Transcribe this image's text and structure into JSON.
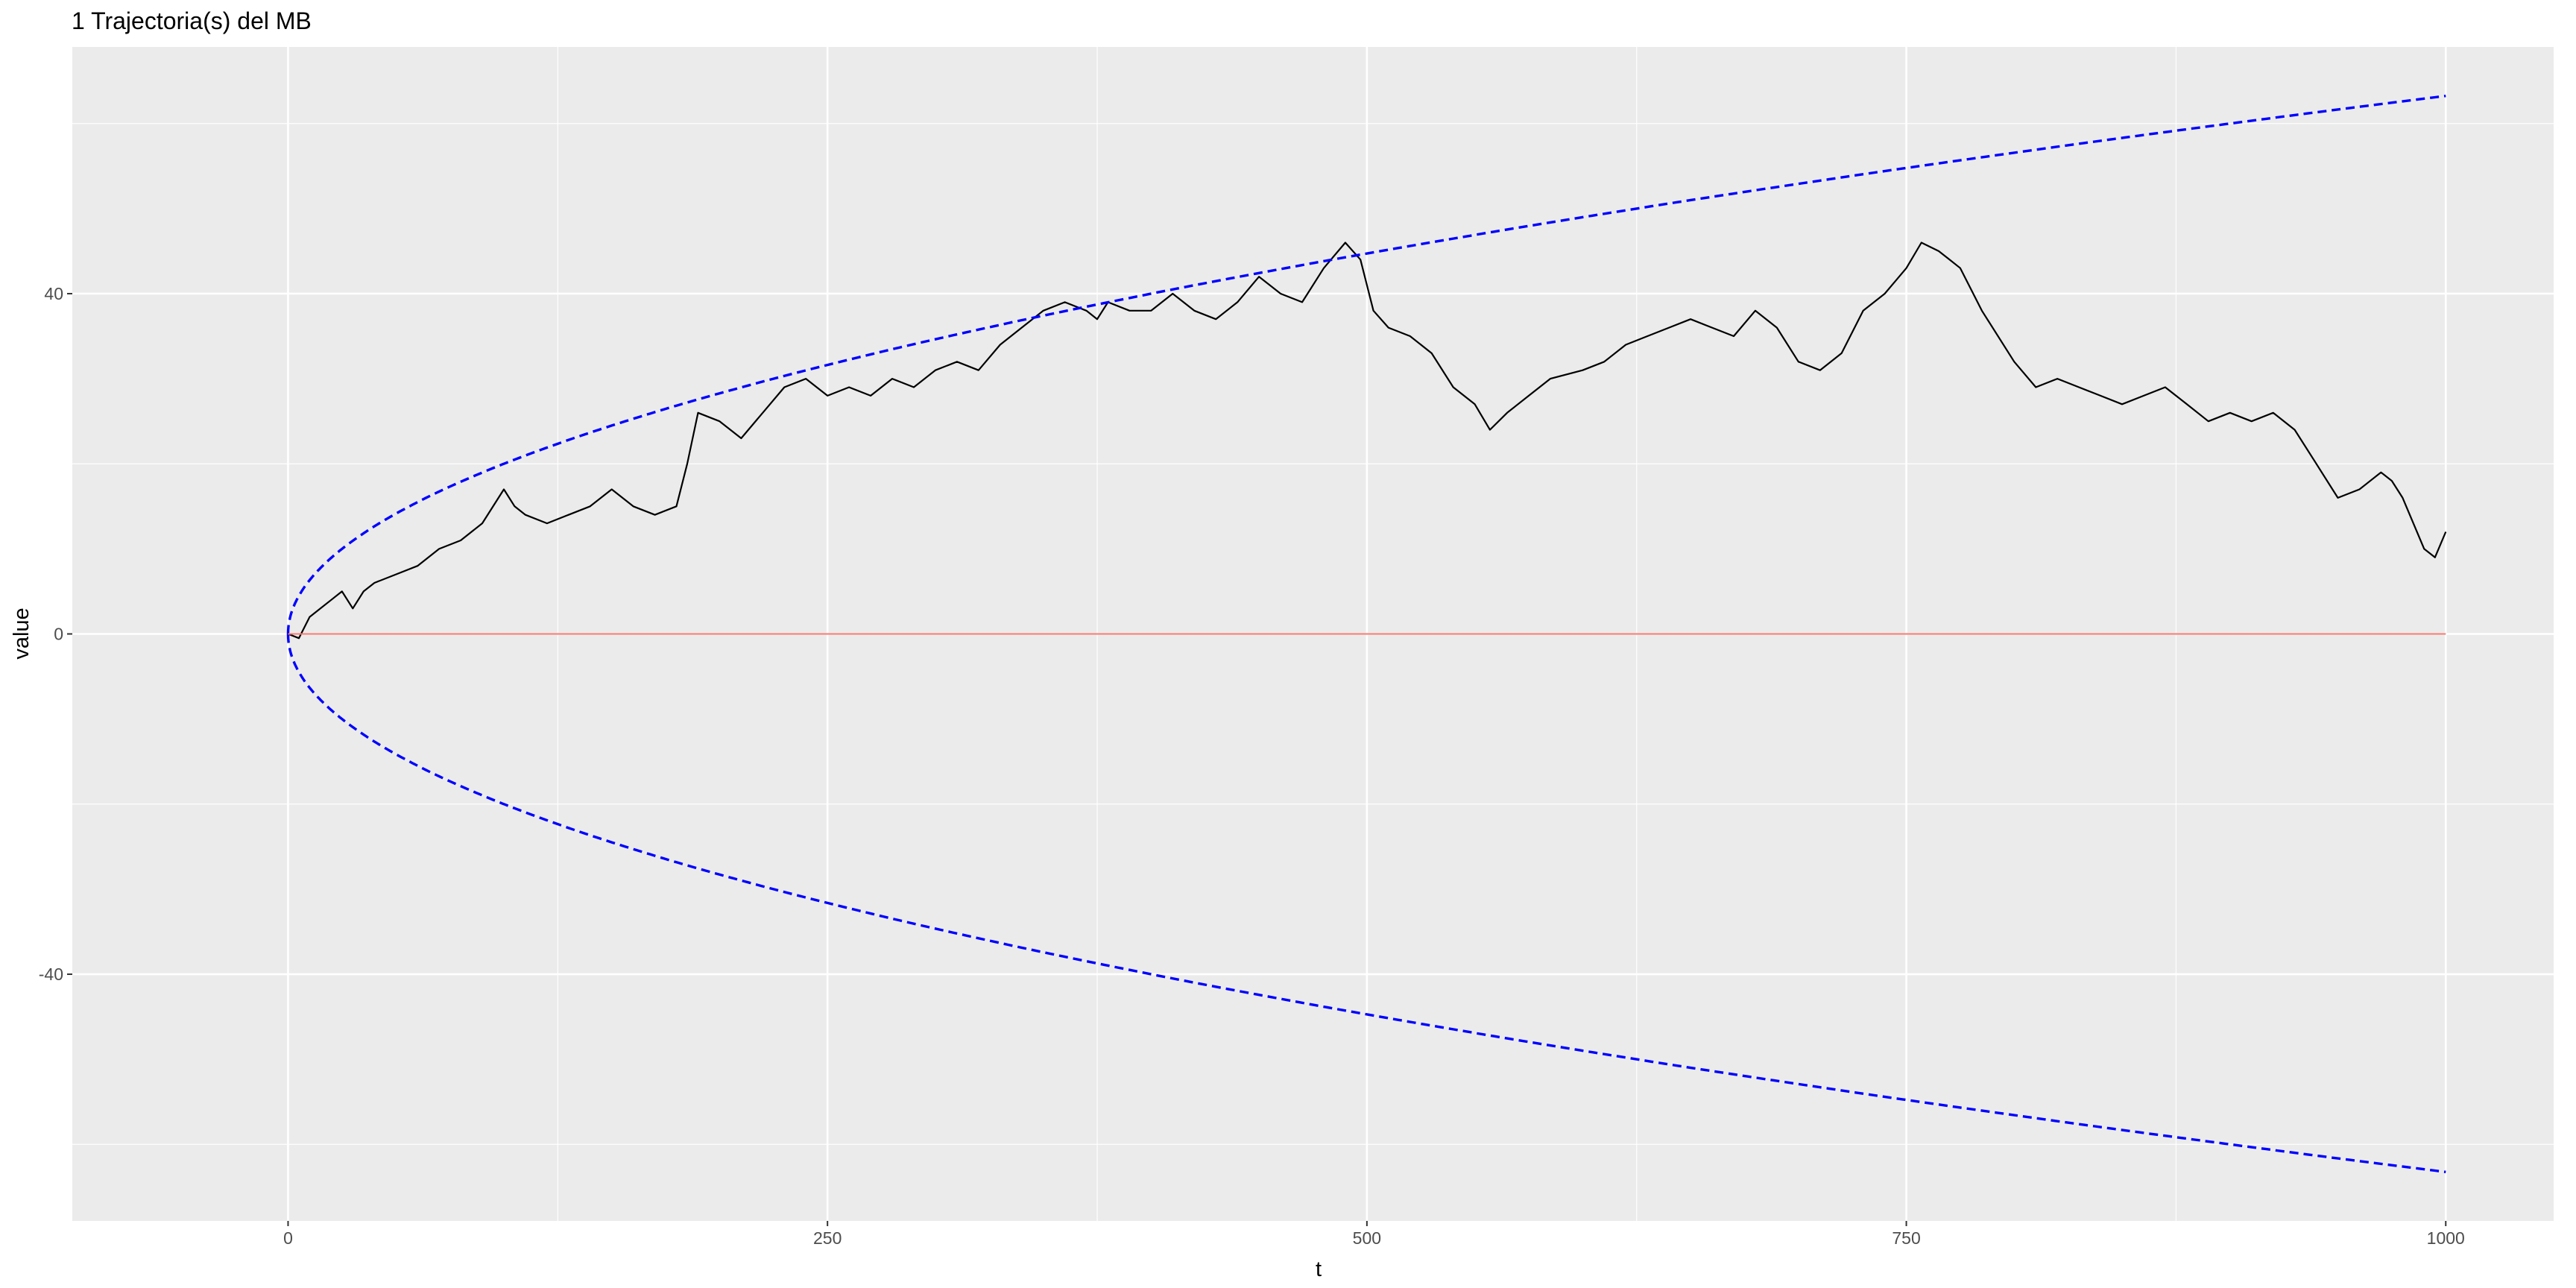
{
  "chart_data": {
    "type": "line",
    "title": "1 Trajectoria(s) del MB",
    "xlabel": "t",
    "ylabel": "value",
    "xlim": [
      -100,
      1050
    ],
    "ylim": [
      -69,
      69
    ],
    "x_ticks": [
      0,
      250,
      500,
      750,
      1000
    ],
    "x_tick_labels": [
      "0",
      "250",
      "500",
      "750",
      "1000"
    ],
    "y_ticks": [
      -40,
      0,
      40
    ],
    "y_tick_labels": [
      "-40",
      "0",
      "40"
    ],
    "grid": true,
    "legend": "none",
    "series": [
      {
        "kind": "path",
        "color": "#000000",
        "style": "solid",
        "points": [
          [
            0,
            0
          ],
          [
            5,
            -0.5
          ],
          [
            10,
            2
          ],
          [
            15,
            3
          ],
          [
            20,
            4
          ],
          [
            25,
            5
          ],
          [
            30,
            3
          ],
          [
            35,
            5
          ],
          [
            40,
            6
          ],
          [
            50,
            7
          ],
          [
            60,
            8
          ],
          [
            70,
            10
          ],
          [
            80,
            11
          ],
          [
            90,
            13
          ],
          [
            100,
            17
          ],
          [
            105,
            15
          ],
          [
            110,
            14
          ],
          [
            120,
            13
          ],
          [
            130,
            14
          ],
          [
            140,
            15
          ],
          [
            150,
            17
          ],
          [
            160,
            15
          ],
          [
            170,
            14
          ],
          [
            180,
            15
          ],
          [
            185,
            20
          ],
          [
            190,
            26
          ],
          [
            200,
            25
          ],
          [
            210,
            23
          ],
          [
            220,
            26
          ],
          [
            230,
            29
          ],
          [
            240,
            30
          ],
          [
            250,
            28
          ],
          [
            260,
            29
          ],
          [
            270,
            28
          ],
          [
            280,
            30
          ],
          [
            290,
            29
          ],
          [
            300,
            31
          ],
          [
            310,
            32
          ],
          [
            320,
            31
          ],
          [
            330,
            34
          ],
          [
            340,
            36
          ],
          [
            350,
            38
          ],
          [
            360,
            39
          ],
          [
            370,
            38
          ],
          [
            375,
            37
          ],
          [
            380,
            39
          ],
          [
            390,
            38
          ],
          [
            400,
            38
          ],
          [
            410,
            40
          ],
          [
            420,
            38
          ],
          [
            430,
            37
          ],
          [
            440,
            39
          ],
          [
            450,
            42
          ],
          [
            460,
            40
          ],
          [
            470,
            39
          ],
          [
            480,
            43
          ],
          [
            490,
            46
          ],
          [
            497,
            44
          ],
          [
            503,
            38
          ],
          [
            510,
            36
          ],
          [
            520,
            35
          ],
          [
            530,
            33
          ],
          [
            540,
            29
          ],
          [
            550,
            27
          ],
          [
            557,
            24
          ],
          [
            565,
            26
          ],
          [
            575,
            28
          ],
          [
            585,
            30
          ],
          [
            600,
            31
          ],
          [
            610,
            32
          ],
          [
            620,
            34
          ],
          [
            630,
            35
          ],
          [
            640,
            36
          ],
          [
            650,
            37
          ],
          [
            660,
            36
          ],
          [
            670,
            35
          ],
          [
            680,
            38
          ],
          [
            690,
            36
          ],
          [
            700,
            32
          ],
          [
            710,
            31
          ],
          [
            720,
            33
          ],
          [
            730,
            38
          ],
          [
            740,
            40
          ],
          [
            750,
            43
          ],
          [
            757,
            46
          ],
          [
            765,
            45
          ],
          [
            770,
            44
          ],
          [
            775,
            43
          ],
          [
            785,
            38
          ],
          [
            800,
            32
          ],
          [
            810,
            29
          ],
          [
            820,
            30
          ],
          [
            830,
            29
          ],
          [
            840,
            28
          ],
          [
            850,
            27
          ],
          [
            860,
            28
          ],
          [
            870,
            29
          ],
          [
            880,
            27
          ],
          [
            890,
            25
          ],
          [
            900,
            26
          ],
          [
            910,
            25
          ],
          [
            920,
            26
          ],
          [
            930,
            24
          ],
          [
            940,
            20
          ],
          [
            950,
            16
          ],
          [
            960,
            17
          ],
          [
            970,
            19
          ],
          [
            975,
            18
          ],
          [
            980,
            16
          ],
          [
            985,
            13
          ],
          [
            990,
            10
          ],
          [
            995,
            9
          ],
          [
            1000,
            12
          ]
        ]
      },
      {
        "kind": "sqrt_band",
        "color": "#0000ff",
        "style": "dashed",
        "formula": "y = +/- 2*sqrt(t)",
        "t_range": [
          0,
          1000
        ]
      },
      {
        "kind": "hline",
        "color": "#f8766d",
        "style": "solid",
        "y": 0,
        "t_range": [
          0,
          1000
        ]
      }
    ]
  }
}
